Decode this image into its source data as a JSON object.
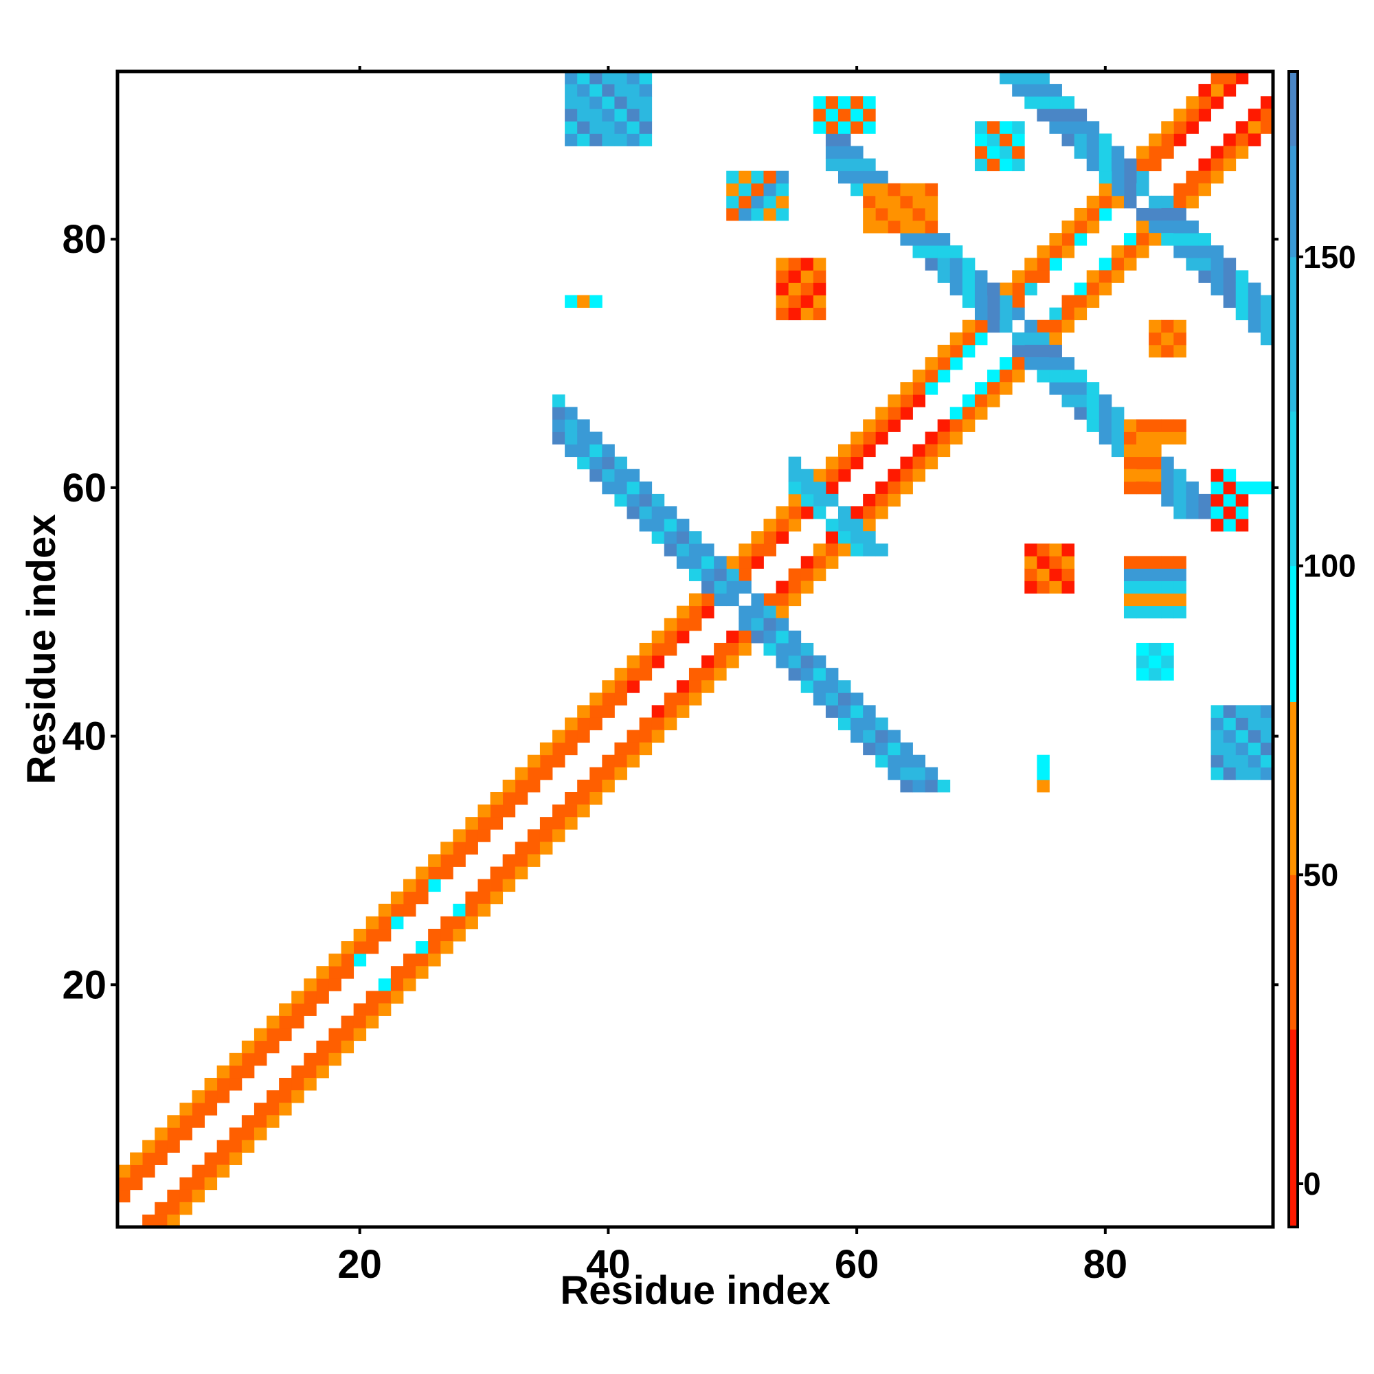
{
  "chart_data": {
    "type": "heatmap",
    "title": "",
    "xlabel": "Residue index",
    "ylabel": "Residue index",
    "xlim": [
      0.5,
      93.5
    ],
    "ylim": [
      0.5,
      93.5
    ],
    "x_ticks": [
      20,
      40,
      60,
      80
    ],
    "y_ticks": [
      20,
      40,
      60,
      80
    ],
    "colorbar": {
      "range": [
        -7,
        180
      ],
      "ticks": [
        0,
        50,
        100,
        150
      ],
      "bands": [
        {
          "from": -7,
          "to": 25,
          "color": "#ff1a00"
        },
        {
          "from": 25,
          "to": 50,
          "color": "#ff5f00"
        },
        {
          "from": 50,
          "to": 78,
          "color": "#ff9200"
        },
        {
          "from": 78,
          "to": 100,
          "color": "#00f4ff"
        },
        {
          "from": 100,
          "to": 125,
          "color": "#1fd0e8"
        },
        {
          "from": 125,
          "to": 150,
          "color": "#2cb8e0"
        },
        {
          "from": 150,
          "to": 168,
          "color": "#3a9ad6"
        },
        {
          "from": 168,
          "to": 180,
          "color": "#4a86c6"
        },
        {
          "from": 180,
          "to": 200,
          "color": "#ffffff"
        }
      ]
    },
    "colors": {
      "red": "#ff1a00",
      "orange_red": "#ff5f00",
      "orange": "#ff9200",
      "cyan": "#00f4ff",
      "light_blue": "#1fd0e8",
      "mid_blue": "#2cb8e0",
      "steel_blue": "#4a86c6"
    },
    "features": [
      {
        "kind": "diag",
        "x1": 1,
        "x2": 91,
        "offsets": [
          -2,
          2
        ],
        "value": 40,
        "pattern": [
          40,
          20,
          40,
          60
        ]
      },
      {
        "kind": "diag",
        "x1": 1,
        "x2": 91,
        "offsets": [
          -3,
          3
        ],
        "value": 45,
        "pattern": [
          45,
          55,
          30,
          45
        ]
      },
      {
        "kind": "diag",
        "x1": 1,
        "x2": 91,
        "offsets": [
          -4,
          4
        ],
        "value": 50,
        "pattern": [
          50,
          35,
          60,
          15
        ]
      },
      {
        "kind": "diag",
        "x1": 20,
        "x2": 28,
        "offsets": [
          -2,
          2
        ],
        "value": 90,
        "pattern": [
          40,
          90,
          40,
          40,
          90,
          40
        ]
      },
      {
        "kind": "diag",
        "x1": 44,
        "x2": 56,
        "offsets": [
          -2,
          2
        ],
        "value": 20,
        "pattern": [
          20,
          20,
          45,
          60
        ]
      },
      {
        "kind": "diag",
        "x1": 60,
        "x2": 68,
        "offsets": [
          -2,
          2
        ],
        "value": 15,
        "pattern": [
          15,
          40,
          15,
          55
        ]
      },
      {
        "kind": "diag",
        "x1": 68,
        "x2": 74,
        "offsets": [
          -2,
          2
        ],
        "value": 90,
        "pattern": [
          90,
          110,
          90,
          40
        ]
      },
      {
        "kind": "diag",
        "x1": 78,
        "x2": 83,
        "offsets": [
          -2,
          2
        ],
        "value": 90,
        "pattern": [
          90,
          110,
          60,
          40
        ]
      },
      {
        "kind": "diag",
        "x1": 88,
        "x2": 93,
        "offsets": [
          -2,
          2
        ],
        "value": 20,
        "pattern": [
          20,
          60,
          20,
          40
        ]
      },
      {
        "kind": "anti",
        "x1": 36,
        "x2": 50,
        "sum": 101,
        "offsets": [
          -1,
          0,
          1,
          2
        ],
        "value": 165,
        "pattern": [
          140,
          165,
          175,
          120,
          165,
          150
        ]
      },
      {
        "kind": "anti",
        "x1": 50,
        "x2": 64,
        "sum": 101,
        "offsets": [
          -1,
          0,
          1,
          2
        ],
        "value": 165,
        "pattern": [
          120,
          165,
          175,
          140,
          165,
          150
        ]
      },
      {
        "kind": "anti",
        "x1": 55,
        "x2": 59,
        "sum": 116,
        "offsets": [
          -1,
          0,
          1
        ],
        "value": 130,
        "pattern": [
          100,
          130,
          140
        ]
      },
      {
        "kind": "anti",
        "x1": 58,
        "x2": 70,
        "sum": 145,
        "offsets": [
          -1,
          0,
          1,
          2
        ],
        "value": 165,
        "pattern": [
          140,
          165,
          175,
          120,
          165
        ]
      },
      {
        "kind": "anti",
        "x1": 70,
        "x2": 78,
        "sum": 145,
        "offsets": [
          -1,
          0,
          1,
          2
        ],
        "value": 165,
        "pattern": [
          120,
          165,
          175,
          140,
          165
        ]
      },
      {
        "kind": "anti",
        "x1": 72,
        "x2": 80,
        "sum": 166,
        "offsets": [
          -1,
          0,
          1,
          2
        ],
        "value": 165,
        "pattern": [
          140,
          165,
          175,
          120,
          165
        ]
      },
      {
        "kind": "anti",
        "x1": 80,
        "x2": 88,
        "sum": 166,
        "offsets": [
          -1,
          0,
          1,
          2
        ],
        "value": 165,
        "pattern": [
          120,
          165,
          175,
          140,
          165
        ]
      },
      {
        "kind": "block",
        "x1": 37,
        "x2": 43,
        "y1": 88,
        "y2": 93,
        "value": 140,
        "pattern": [
          130,
          165,
          120,
          175,
          140
        ]
      },
      {
        "kind": "block",
        "x1": 89,
        "x2": 93,
        "y1": 37,
        "y2": 42,
        "value": 140,
        "pattern": [
          130,
          165,
          120,
          175,
          140
        ]
      },
      {
        "kind": "block",
        "x1": 50,
        "x2": 54,
        "y1": 82,
        "y2": 85,
        "value": 120,
        "pattern": [
          60,
          120,
          150,
          45,
          110
        ]
      },
      {
        "kind": "block",
        "x1": 82,
        "x2": 86,
        "y1": 50,
        "y2": 54,
        "value": 120,
        "pattern": [
          60,
          120,
          150,
          45,
          110
        ]
      },
      {
        "kind": "block",
        "x1": 74,
        "x2": 77,
        "y1": 52,
        "y2": 55,
        "value": 40,
        "pattern": [
          40,
          60,
          20
        ]
      },
      {
        "kind": "block",
        "x1": 54,
        "x2": 57,
        "y1": 74,
        "y2": 78,
        "value": 40,
        "pattern": [
          40,
          60,
          20
        ]
      },
      {
        "kind": "block",
        "x1": 82,
        "x2": 84,
        "y1": 60,
        "y2": 65,
        "value": 45,
        "pattern": [
          45,
          60
        ]
      },
      {
        "kind": "block",
        "x1": 61,
        "x2": 66,
        "y1": 81,
        "y2": 84,
        "value": 55,
        "pattern": [
          55,
          40,
          70
        ]
      },
      {
        "kind": "block",
        "x1": 89,
        "x2": 91,
        "y1": 57,
        "y2": 61,
        "value": 20,
        "pattern": [
          20,
          90
        ]
      },
      {
        "kind": "block",
        "x1": 57,
        "x2": 61,
        "y1": 89,
        "y2": 91,
        "value": 90,
        "pattern": [
          40,
          90
        ]
      },
      {
        "kind": "block",
        "x1": 37,
        "x2": 39,
        "y1": 75,
        "y2": 75,
        "value": 90,
        "pattern": [
          60,
          90,
          90
        ]
      },
      {
        "kind": "block",
        "x1": 75,
        "x2": 75,
        "y1": 36,
        "y2": 38,
        "value": 90,
        "pattern": [
          60,
          90,
          90
        ]
      },
      {
        "kind": "block",
        "x1": 83,
        "x2": 85,
        "y1": 45,
        "y2": 47,
        "value": 90,
        "pattern": [
          90,
          120
        ]
      },
      {
        "kind": "block",
        "x1": 70,
        "x2": 73,
        "y1": 86,
        "y2": 89,
        "value": 90,
        "pattern": [
          40,
          90,
          120
        ]
      },
      {
        "kind": "block",
        "x1": 84,
        "x2": 86,
        "y1": 71,
        "y2": 73,
        "value": 60,
        "pattern": [
          60,
          40
        ]
      },
      {
        "kind": "block",
        "x1": 83,
        "x2": 86,
        "y1": 64,
        "y2": 65,
        "value": 40,
        "pattern": [
          40,
          60
        ]
      },
      {
        "kind": "block",
        "x1": 91,
        "x2": 93,
        "y1": 60,
        "y2": 61,
        "value": 90,
        "pattern": [
          90,
          200
        ]
      }
    ]
  }
}
